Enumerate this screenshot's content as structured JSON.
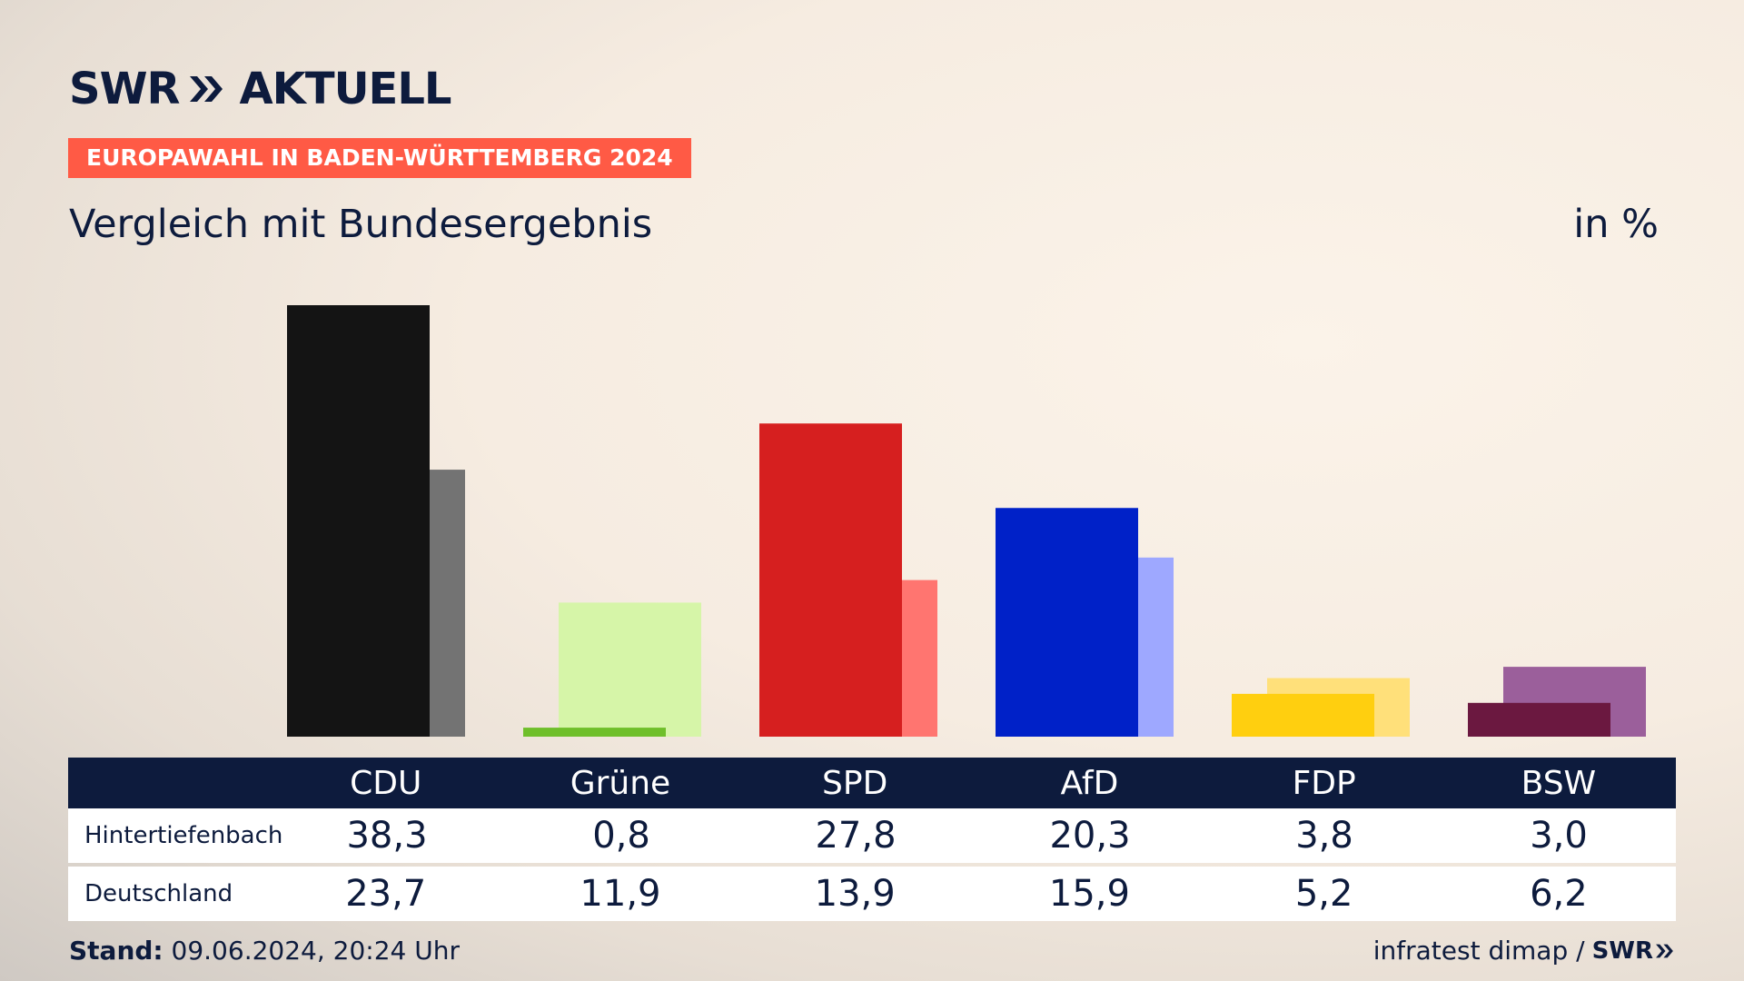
{
  "brand": {
    "logo_swr": "SWR",
    "logo_aktuell": "AKTUELL"
  },
  "header": {
    "badge": "EUROPAWAHL IN BADEN-WÜRTTEMBERG 2024",
    "subtitle": "Vergleich mit Bundesergebnis",
    "unit": "in %"
  },
  "chart_data": {
    "type": "bar",
    "categories": [
      "CDU",
      "Grüne",
      "SPD",
      "AfD",
      "FDP",
      "BSW"
    ],
    "series": [
      {
        "name": "Hintertiefenbach",
        "values": [
          38.3,
          0.8,
          27.8,
          20.3,
          3.8,
          3.0
        ]
      },
      {
        "name": "Deutschland",
        "values": [
          23.7,
          11.9,
          13.9,
          15.9,
          5.2,
          6.2
        ]
      }
    ],
    "ylim": [
      0,
      38.3
    ],
    "colors": {
      "primary": [
        "#141414",
        "#6fbf2a",
        "#d61f1f",
        "#0021c8",
        "#ffcf0f",
        "#6b1840"
      ],
      "secondary": [
        "#737373",
        "#d6f5a8",
        "#ff7570",
        "#9ea8ff",
        "#ffe07a",
        "#9b5f9b"
      ]
    }
  },
  "table": {
    "headers": [
      "CDU",
      "Grüne",
      "SPD",
      "AfD",
      "FDP",
      "BSW"
    ],
    "rows": [
      {
        "label": "Hintertiefenbach",
        "values": [
          "38,3",
          "0,8",
          "27,8",
          "20,3",
          "3,8",
          "3,0"
        ]
      },
      {
        "label": "Deutschland",
        "values": [
          "23,7",
          "11,9",
          "13,9",
          "15,9",
          "5,2",
          "6,2"
        ]
      }
    ]
  },
  "footer": {
    "stand_label": "Stand:",
    "stand_value": "09.06.2024, 20:24 Uhr",
    "source": "infratest dimap /",
    "mini_logo": "SWR"
  }
}
